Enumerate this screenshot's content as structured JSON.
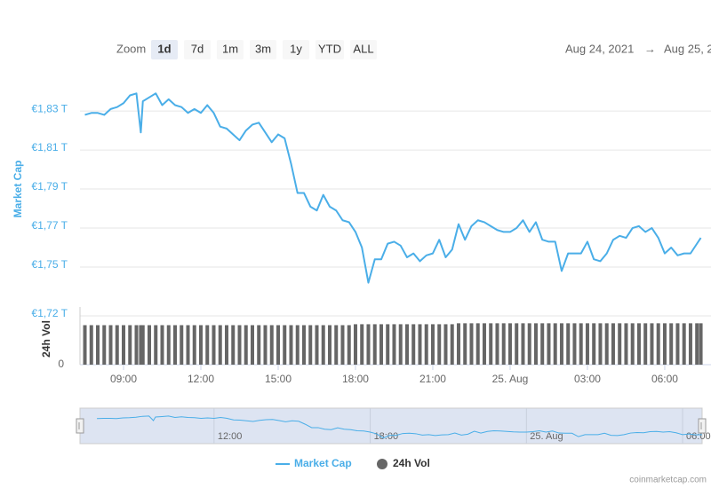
{
  "zoom_label": "Zoom",
  "zoom_buttons": [
    "1d",
    "7d",
    "1m",
    "3m",
    "1y",
    "YTD",
    "ALL"
  ],
  "date_from": "Aug 24, 2021",
  "date_arrow": "→",
  "date_to": "Aug 25, 2",
  "chart_data": {
    "type": "line",
    "ylabel": "Market Cap",
    "y2label": "24h Vol",
    "x": [
      7.5,
      7.75,
      8,
      8.25,
      8.5,
      8.75,
      9,
      9.25,
      9.5,
      9.67,
      9.75,
      10,
      10.25,
      10.5,
      10.75,
      11,
      11.25,
      11.5,
      11.75,
      12,
      12.25,
      12.5,
      12.75,
      13,
      13.25,
      13.5,
      13.75,
      14,
      14.25,
      14.5,
      14.75,
      15,
      15.25,
      15.5,
      15.75,
      16,
      16.25,
      16.5,
      16.75,
      17,
      17.25,
      17.5,
      17.75,
      18,
      18.25,
      18.5,
      18.75,
      19,
      19.25,
      19.5,
      19.75,
      20,
      20.25,
      20.5,
      20.75,
      21,
      21.25,
      21.5,
      21.75,
      22,
      22.25,
      22.5,
      22.75,
      23,
      23.25,
      23.5,
      23.75,
      24,
      24.25,
      24.5,
      24.75,
      25,
      25.25,
      25.5,
      25.75,
      26,
      26.25,
      26.5,
      26.75,
      27,
      27.25,
      27.5,
      27.75,
      28,
      28.25,
      28.5,
      28.75,
      29,
      29.25,
      29.5,
      29.75,
      30,
      30.25,
      30.5,
      30.75,
      31,
      31.25,
      31.4
    ],
    "series": [
      {
        "name": "Market Cap",
        "color": "#4aaee8",
        "values": [
          1.828,
          1.829,
          1.829,
          1.828,
          1.831,
          1.832,
          1.834,
          1.838,
          1.839,
          1.819,
          1.835,
          1.837,
          1.839,
          1.833,
          1.836,
          1.833,
          1.832,
          1.829,
          1.831,
          1.829,
          1.833,
          1.829,
          1.822,
          1.821,
          1.818,
          1.815,
          1.82,
          1.823,
          1.824,
          1.819,
          1.814,
          1.818,
          1.816,
          1.803,
          1.788,
          1.788,
          1.781,
          1.779,
          1.787,
          1.781,
          1.779,
          1.774,
          1.773,
          1.768,
          1.76,
          1.742,
          1.754,
          1.754,
          1.762,
          1.763,
          1.761,
          1.755,
          1.757,
          1.753,
          1.756,
          1.757,
          1.764,
          1.755,
          1.759,
          1.772,
          1.764,
          1.771,
          1.774,
          1.773,
          1.771,
          1.769,
          1.768,
          1.768,
          1.77,
          1.774,
          1.768,
          1.773,
          1.764,
          1.763,
          1.763,
          1.748,
          1.757,
          1.757,
          1.757,
          1.763,
          1.754,
          1.753,
          1.757,
          1.764,
          1.766,
          1.765,
          1.77,
          1.771,
          1.768,
          1.77,
          1.765,
          1.757,
          1.76,
          1.756,
          1.757,
          1.757,
          1.762,
          1.765
        ]
      },
      {
        "name": "24h Vol",
        "color": "#666666",
        "axis": "y2",
        "values": [
          84,
          84,
          84,
          84,
          84,
          84,
          84,
          84,
          84,
          84,
          84,
          84,
          84,
          84,
          84,
          84,
          84,
          84,
          84,
          84,
          84,
          84,
          84,
          84,
          84,
          84,
          84,
          84,
          84,
          84,
          84,
          84,
          84,
          84,
          84,
          84,
          84,
          84,
          84,
          84,
          84,
          84,
          84,
          86,
          86,
          86,
          86,
          86,
          86,
          86,
          86,
          86,
          86,
          86,
          86,
          86,
          86,
          86,
          86,
          88,
          88,
          88,
          88,
          88,
          88,
          88,
          88,
          88,
          88,
          88,
          88,
          88,
          88,
          88,
          88,
          88,
          88,
          88,
          88,
          88,
          88,
          88,
          88,
          88,
          88,
          88,
          88,
          88,
          88,
          88,
          88,
          88,
          88,
          88,
          88,
          88,
          88,
          88
        ]
      }
    ],
    "xlim": [
      7.31,
      31.45
    ],
    "xticks": [
      {
        "value": 9,
        "label": "09:00"
      },
      {
        "value": 12,
        "label": "12:00"
      },
      {
        "value": 15,
        "label": "15:00"
      },
      {
        "value": 18,
        "label": "18:00"
      },
      {
        "value": 21,
        "label": "21:00"
      },
      {
        "value": 24,
        "label": "25. Aug"
      },
      {
        "value": 27,
        "label": "03:00"
      },
      {
        "value": 30,
        "label": "06:00"
      }
    ],
    "ylim": [
      1.725,
      1.8505
    ],
    "yticks": [
      {
        "value": 1.725,
        "label": "€1,72 T"
      },
      {
        "value": 1.75,
        "label": "€1,75 T"
      },
      {
        "value": 1.77,
        "label": "€1,77 T"
      },
      {
        "value": 1.79,
        "label": "€1,79 T"
      },
      {
        "value": 1.81,
        "label": "€1,81 T"
      },
      {
        "value": 1.83,
        "label": "€1,83 T"
      }
    ],
    "y2lim": [
      0,
      100
    ],
    "y2ticks": [
      0
    ],
    "grid": true
  },
  "navigator": {
    "xlim": [
      6.85,
      30.75
    ],
    "xticks": [
      {
        "value": 12,
        "label": "12:00"
      },
      {
        "value": 18,
        "label": "18:00"
      },
      {
        "value": 24,
        "label": "25. Aug"
      },
      {
        "value": 30,
        "label": "06:00"
      }
    ]
  },
  "credit": "coinmarketcap.com"
}
